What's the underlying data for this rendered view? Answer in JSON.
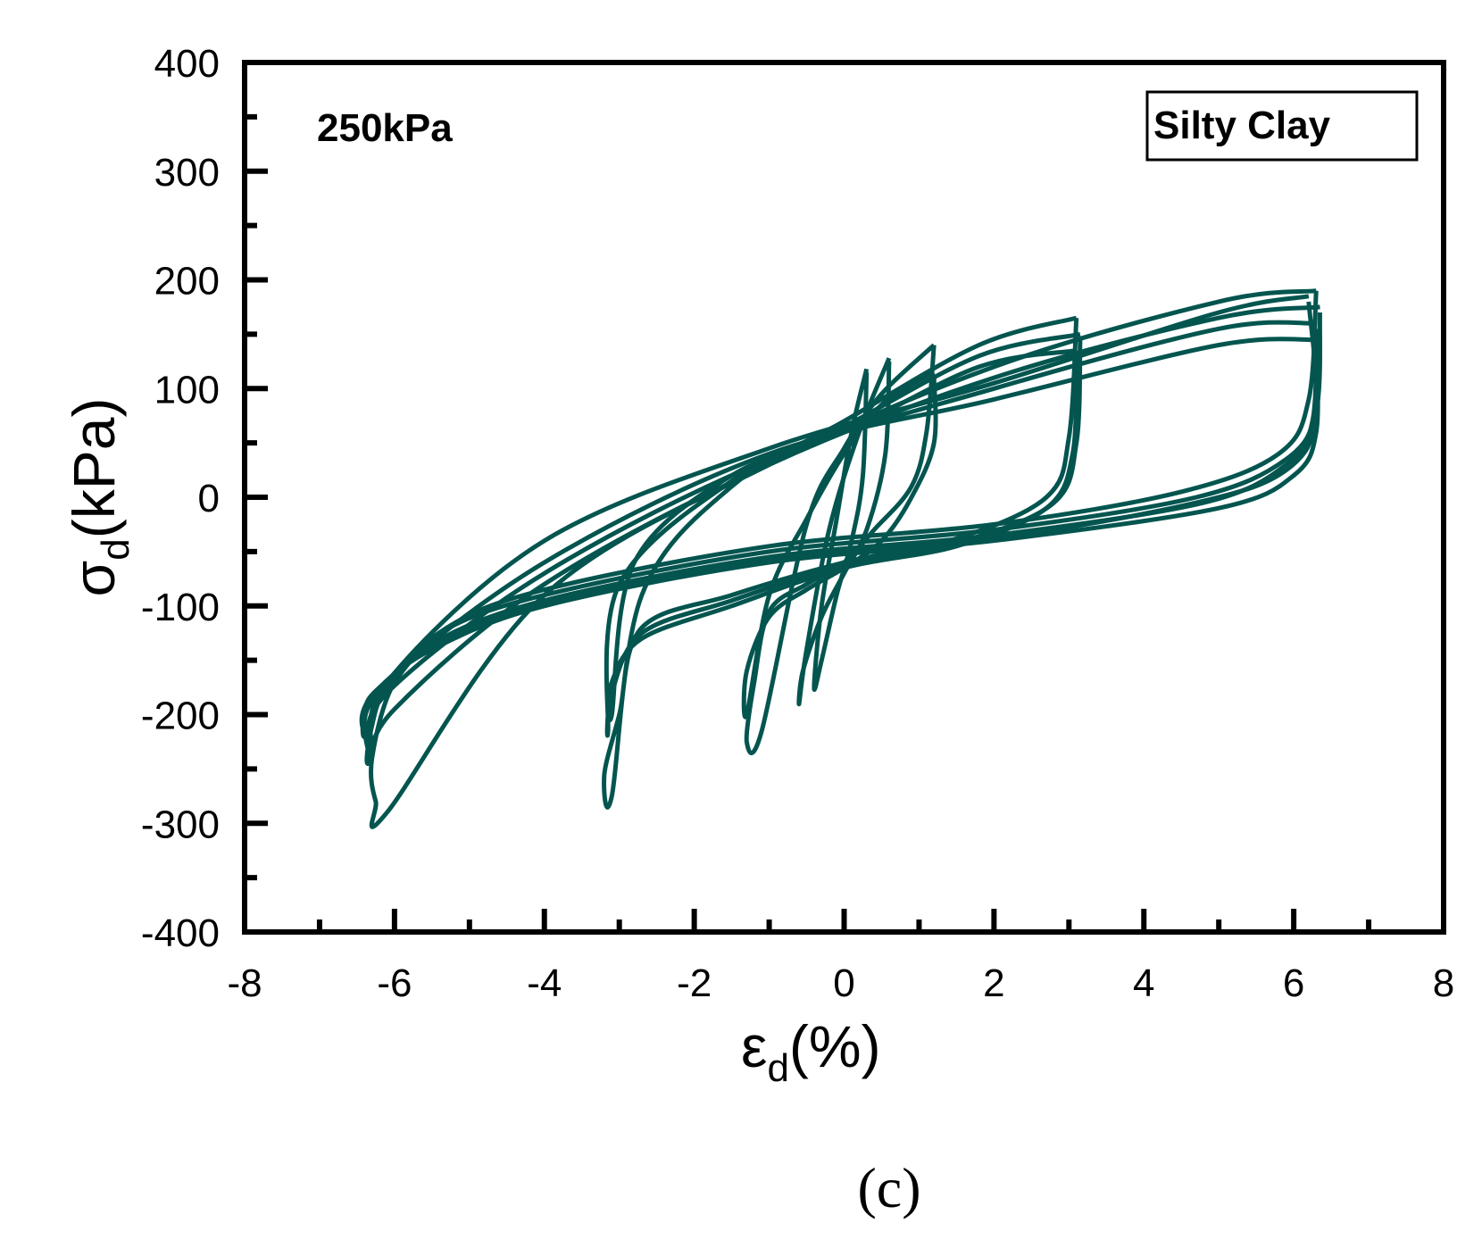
{
  "chart_data": {
    "type": "line",
    "title": "",
    "xlabel": {
      "main": "ε",
      "sub": "d",
      "unit": "(%)"
    },
    "ylabel": {
      "main": "σ",
      "sub": "d",
      "unit": "(kPa)"
    },
    "xlim": [
      -8,
      8
    ],
    "ylim": [
      -400,
      400
    ],
    "x_ticks": [
      -8,
      -6,
      -4,
      -2,
      0,
      2,
      4,
      6,
      8
    ],
    "y_ticks": [
      -400,
      -300,
      -200,
      -100,
      0,
      100,
      200,
      300,
      400
    ],
    "x_tick_labels": [
      "-8",
      "-6",
      "-4",
      "-2",
      "0",
      "2",
      "4",
      "6",
      "8"
    ],
    "y_tick_labels": [
      "-400",
      "-300",
      "-200",
      "-100",
      "0",
      "100",
      "200",
      "300",
      "400"
    ],
    "grid": false,
    "line_color": "#04554f",
    "annotations": {
      "pressure": "250kPa",
      "legend_box": "Silty Clay"
    },
    "panel_label": "(c)",
    "series": [
      {
        "x": [
          6.3,
          6.3,
          6.0,
          5.0,
          2.0,
          -1.0,
          -4.0,
          -5.5,
          -6.2,
          -6.4,
          -6.4,
          -6.2,
          -4.0,
          -1.0,
          2.0,
          5.0,
          6.3
        ],
        "y": [
          140,
          60,
          20,
          -10,
          -40,
          -60,
          -100,
          -140,
          -175,
          -195,
          -220,
          -175,
          -60,
          40,
          90,
          140,
          145
        ]
      },
      {
        "x": [
          6.3,
          6.25,
          5.9,
          4.8,
          2.0,
          -1.0,
          -4.0,
          -5.5,
          -6.1,
          -6.3,
          -6.35,
          -6.1,
          -4.0,
          -1.0,
          2.0,
          5.0,
          6.3
        ],
        "y": [
          155,
          70,
          30,
          -5,
          -35,
          -55,
          -95,
          -135,
          -180,
          -200,
          -230,
          -180,
          -70,
          35,
          100,
          155,
          160
        ]
      },
      {
        "x": [
          6.35,
          6.3,
          5.9,
          4.7,
          2.0,
          -1.0,
          -4.0,
          -5.4,
          -6.1,
          -6.3,
          -6.35,
          -6.0,
          -4.0,
          -1.0,
          2.0,
          5.0,
          6.35
        ],
        "y": [
          170,
          80,
          35,
          0,
          -30,
          -50,
          -90,
          -125,
          -175,
          -210,
          -245,
          -195,
          -80,
          30,
          110,
          165,
          175
        ]
      },
      {
        "x": [
          6.3,
          6.2,
          5.8,
          4.5,
          2.0,
          -1.0,
          -4.0,
          -5.3,
          -6.0,
          -6.3,
          -6.25,
          -6.1,
          -4.0,
          -1.0,
          2.0,
          5.0,
          6.3
        ],
        "y": [
          190,
          90,
          40,
          5,
          -25,
          -45,
          -85,
          -120,
          -170,
          -240,
          -280,
          -290,
          -90,
          30,
          120,
          180,
          190
        ]
      },
      {
        "x": [
          6.2,
          6.3,
          5.9,
          4.7,
          2.0,
          -1.0,
          -4.0,
          -5.5,
          -6.2,
          -6.4,
          -6.3,
          -6.1,
          -4.0,
          -1.0,
          2.0,
          5.0,
          6.2
        ],
        "y": [
          180,
          75,
          25,
          -5,
          -38,
          -58,
          -98,
          -138,
          -180,
          -205,
          -235,
          -170,
          -40,
          45,
          105,
          170,
          185
        ]
      },
      {
        "x": [
          3.1,
          3.05,
          2.7,
          1.5,
          0.0,
          -1.5,
          -2.7,
          -3.1,
          -3.1,
          -2.8,
          -1.5,
          0.0,
          1.8,
          3.1
        ],
        "y": [
          130,
          40,
          -10,
          -45,
          -65,
          -100,
          -130,
          -170,
          -200,
          -60,
          20,
          60,
          120,
          135
        ]
      },
      {
        "x": [
          3.15,
          3.1,
          2.8,
          1.6,
          0.0,
          -1.5,
          -2.7,
          -3.1,
          -3.15,
          -3.0,
          -1.5,
          0.0,
          1.8,
          3.15
        ],
        "y": [
          145,
          50,
          -5,
          -40,
          -62,
          -95,
          -125,
          -180,
          -215,
          -80,
          15,
          65,
          130,
          150
        ]
      },
      {
        "x": [
          3.1,
          3.0,
          2.7,
          1.5,
          0.0,
          -1.5,
          -2.7,
          -3.0,
          -3.2,
          -3.1,
          -2.7,
          -1.5,
          0.0,
          1.8,
          3.1
        ],
        "y": [
          165,
          55,
          0,
          -38,
          -60,
          -90,
          -120,
          -200,
          -255,
          -275,
          -90,
          10,
          70,
          140,
          165
        ]
      },
      {
        "x": [
          1.2,
          1.2,
          0.9,
          0.5,
          0.0,
          -0.5,
          -1.0,
          -1.3,
          -1.3,
          -1.0,
          -0.5,
          0.0,
          0.5,
          1.2
        ],
        "y": [
          110,
          50,
          0,
          -40,
          -65,
          -85,
          -110,
          -160,
          -200,
          -90,
          -20,
          40,
          85,
          115
        ]
      },
      {
        "x": [
          1.2,
          1.1,
          0.9,
          0.4,
          0.0,
          -0.5,
          -1.0,
          -1.2,
          -1.3,
          -1.1,
          -0.5,
          0.0,
          0.5,
          1.2
        ],
        "y": [
          140,
          60,
          10,
          -30,
          -60,
          -80,
          -105,
          -170,
          -225,
          -215,
          -25,
          45,
          95,
          140
        ]
      },
      {
        "x": [
          0.6,
          0.55,
          0.3,
          0.0,
          -0.3,
          -0.55,
          -0.6,
          -0.5,
          -0.2,
          0.2,
          0.6
        ],
        "y": [
          125,
          40,
          -30,
          -70,
          -110,
          -160,
          -190,
          -140,
          -30,
          60,
          128
        ]
      },
      {
        "x": [
          0.3,
          0.25,
          0.1,
          -0.1,
          -0.3,
          -0.4,
          -0.3,
          -0.1,
          0.1,
          0.3
        ],
        "y": [
          115,
          20,
          -40,
          -90,
          -150,
          -175,
          -100,
          -20,
          60,
          118
        ]
      }
    ]
  }
}
